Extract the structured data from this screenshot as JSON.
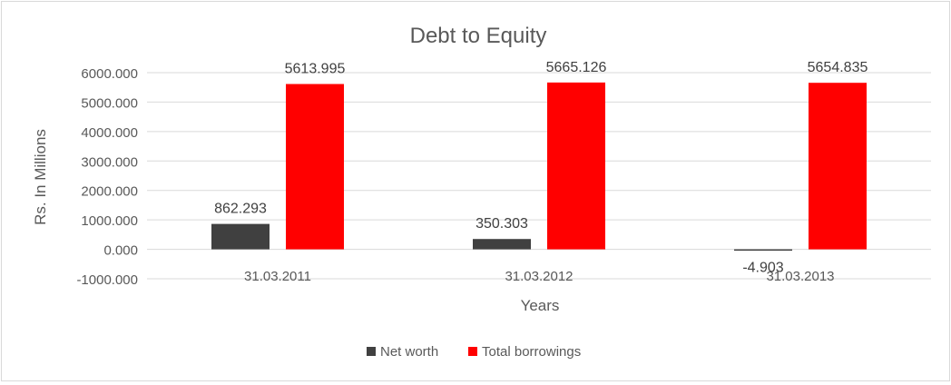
{
  "chart_data": {
    "type": "bar",
    "title": "Debt to Equity",
    "xlabel": "Years",
    "ylabel": "Rs. In Millions",
    "categories": [
      "31.03.2011",
      "31.03.2012",
      "31.03.2013"
    ],
    "series": [
      {
        "name": "Net worth",
        "color": "#404040",
        "values": [
          862.293,
          350.303,
          -4.903
        ],
        "labels": [
          "862.293",
          "350.303",
          "-4.903"
        ]
      },
      {
        "name": "Total borrowings",
        "color": "#ff0000",
        "values": [
          5613.995,
          5665.126,
          5654.835
        ],
        "labels": [
          "5613.995",
          "5665.126",
          "5654.835"
        ]
      }
    ],
    "ylim": [
      -1000,
      6000
    ],
    "yticks": [
      6000,
      5000,
      4000,
      3000,
      2000,
      1000,
      0,
      -1000
    ],
    "ytick_labels": [
      "6000.000",
      "5000.000",
      "4000.000",
      "3000.000",
      "2000.000",
      "1000.000",
      "0.000",
      "-1000.000"
    ],
    "grid": true,
    "legend_position": "bottom"
  }
}
